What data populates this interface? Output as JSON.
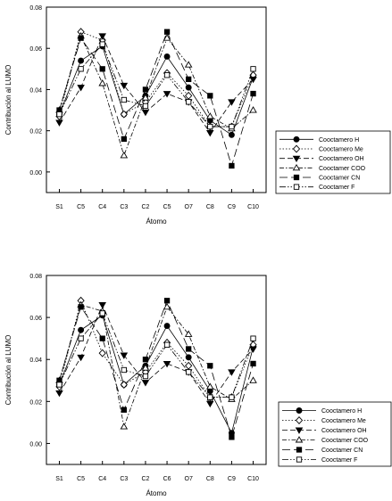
{
  "chart_data": [
    {
      "type": "line",
      "title": "",
      "xlabel": "Átomo",
      "ylabel": "Contribución al LUMO",
      "categories": [
        "S1",
        "C5",
        "C4",
        "C3",
        "C2",
        "C5",
        "O7",
        "C8",
        "C9",
        "C10"
      ],
      "ylim": [
        -0.01,
        0.08
      ],
      "yticks": [
        0.0,
        0.02,
        0.04,
        0.06,
        0.08
      ],
      "ytick_labels": [
        "0.00",
        "0.02",
        "0.04",
        "0.06",
        "0.08"
      ],
      "grid": false,
      "legend_position": "right",
      "series": [
        {
          "name": "Cooctamero H",
          "marker": "circle-filled",
          "values": [
            0.028,
            0.054,
            0.061,
            0.028,
            0.037,
            0.056,
            0.041,
            0.025,
            0.018,
            0.046
          ]
        },
        {
          "name": "Cooctamero Me",
          "marker": "diamond-open",
          "values": [
            0.027,
            0.068,
            0.064,
            0.028,
            0.034,
            0.048,
            0.037,
            0.022,
            0.022,
            0.047
          ]
        },
        {
          "name": "Cooctamero OH",
          "marker": "triangle-down-filled",
          "values": [
            0.024,
            0.041,
            0.066,
            0.042,
            0.029,
            0.038,
            0.034,
            0.019,
            0.034,
            0.045
          ]
        },
        {
          "name": "Cooctamer COO",
          "marker": "triangle-up-open",
          "values": [
            0.03,
            0.066,
            0.043,
            0.008,
            0.036,
            0.065,
            0.052,
            0.027,
            0.021,
            0.03
          ]
        },
        {
          "name": "Cooctamer CN",
          "marker": "square-filled",
          "values": [
            0.03,
            0.065,
            0.05,
            0.016,
            0.04,
            0.068,
            0.045,
            0.037,
            0.003,
            0.038
          ]
        },
        {
          "name": "Cooctamer F",
          "marker": "square-open",
          "values": [
            0.028,
            0.05,
            0.062,
            0.035,
            0.032,
            0.047,
            0.034,
            0.022,
            0.022,
            0.05
          ]
        }
      ]
    },
    {
      "type": "line",
      "title": "",
      "xlabel": "Átomo",
      "ylabel": "Contribución al LUMO",
      "categories": [
        "S1",
        "C5",
        "C4",
        "C3",
        "C2",
        "C6",
        "O7",
        "C8",
        "C9",
        "C10"
      ],
      "ylim": [
        -0.01,
        0.08
      ],
      "yticks": [
        0.0,
        0.02,
        0.04,
        0.06,
        0.08
      ],
      "ytick_labels": [
        "0.00",
        "0.02",
        "0.04",
        "0.06",
        "0.08"
      ],
      "grid": false,
      "legend_position": "right",
      "series": [
        {
          "name": "Cooctamero H",
          "marker": "circle-filled",
          "values": [
            0.028,
            0.054,
            0.061,
            0.028,
            0.037,
            0.056,
            0.041,
            0.025,
            0.005,
            0.046
          ]
        },
        {
          "name": "Cooctamero Me",
          "marker": "diamond-open",
          "values": [
            0.027,
            0.068,
            0.043,
            0.028,
            0.034,
            0.048,
            0.037,
            0.022,
            0.022,
            0.047
          ]
        },
        {
          "name": "Cooctamero OH",
          "marker": "triangle-down-filled",
          "values": [
            0.024,
            0.041,
            0.066,
            0.042,
            0.029,
            0.038,
            0.034,
            0.019,
            0.034,
            0.045
          ]
        },
        {
          "name": "Cooctamer COO",
          "marker": "triangle-up-open",
          "values": [
            0.03,
            0.066,
            0.063,
            0.008,
            0.036,
            0.065,
            0.052,
            0.027,
            0.021,
            0.03
          ]
        },
        {
          "name": "Cooctamer CN",
          "marker": "square-filled",
          "values": [
            0.03,
            0.065,
            0.05,
            0.016,
            0.04,
            0.068,
            0.045,
            0.037,
            0.003,
            0.038
          ]
        },
        {
          "name": "Cooctamer F",
          "marker": "square-open",
          "values": [
            0.028,
            0.05,
            0.062,
            0.035,
            0.032,
            0.047,
            0.034,
            0.022,
            0.022,
            0.05
          ]
        }
      ]
    }
  ]
}
